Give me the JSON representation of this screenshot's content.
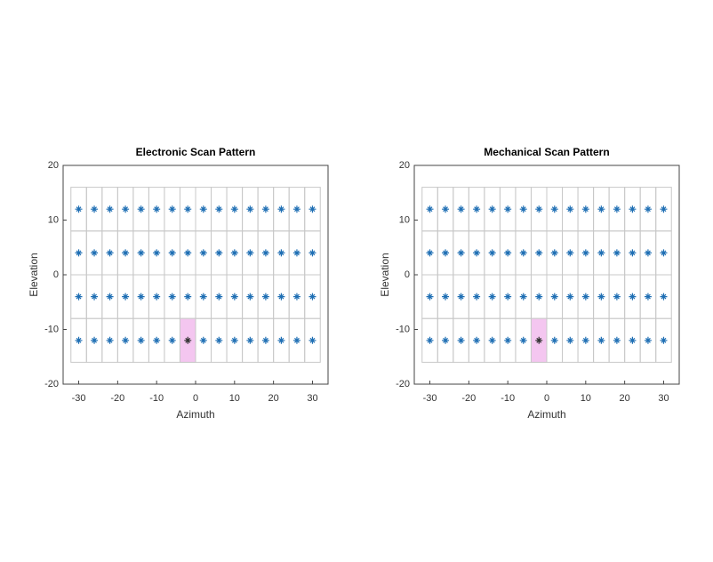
{
  "chart_data": [
    {
      "type": "scatter",
      "title": "Electronic Scan Pattern",
      "x_label": "Azimuth",
      "y_label": "Elevation",
      "x": [
        -30,
        -26,
        -22,
        -18,
        -14,
        -10,
        -6,
        -2,
        2,
        6,
        10,
        14,
        18,
        22,
        26,
        30,
        -30,
        -26,
        -22,
        -18,
        -14,
        -10,
        -6,
        -2,
        2,
        6,
        10,
        14,
        18,
        22,
        26,
        30,
        -30,
        -26,
        -22,
        -18,
        -14,
        -10,
        -6,
        -2,
        2,
        6,
        10,
        14,
        18,
        22,
        26,
        30,
        -30,
        -26,
        -22,
        -18,
        -14,
        -10,
        -6,
        -2,
        2,
        6,
        10,
        14,
        18,
        22,
        26,
        30
      ],
      "y": [
        12,
        12,
        12,
        12,
        12,
        12,
        12,
        12,
        12,
        12,
        12,
        12,
        12,
        12,
        12,
        12,
        4,
        4,
        4,
        4,
        4,
        4,
        4,
        4,
        4,
        4,
        4,
        4,
        4,
        4,
        4,
        4,
        -4,
        -4,
        -4,
        -4,
        -4,
        -4,
        -4,
        -4,
        -4,
        -4,
        -4,
        -4,
        -4,
        -4,
        -4,
        -4,
        -12,
        -12,
        -12,
        -12,
        -12,
        -12,
        -12,
        -12,
        -12,
        -12,
        -12,
        -12,
        -12,
        -12,
        -12,
        -12
      ],
      "cell_width": 4,
      "cell_height": 8,
      "highlight": {
        "azimuth": -2,
        "elevation": -12,
        "color": "#f4c6f0"
      },
      "color": "#1f6fb4",
      "xlim": [
        -34,
        34
      ],
      "ylim": [
        -20,
        20
      ],
      "xticks": [
        -30,
        -20,
        -10,
        0,
        10,
        20,
        30
      ],
      "yticks": [
        -20,
        -10,
        0,
        10,
        20
      ]
    },
    {
      "type": "scatter",
      "title": "Mechanical Scan Pattern",
      "x_label": "Azimuth",
      "y_label": "Elevation",
      "x": [
        -30,
        -26,
        -22,
        -18,
        -14,
        -10,
        -6,
        -2,
        2,
        6,
        10,
        14,
        18,
        22,
        26,
        30,
        -30,
        -26,
        -22,
        -18,
        -14,
        -10,
        -6,
        -2,
        2,
        6,
        10,
        14,
        18,
        22,
        26,
        30,
        -30,
        -26,
        -22,
        -18,
        -14,
        -10,
        -6,
        -2,
        2,
        6,
        10,
        14,
        18,
        22,
        26,
        30,
        -30,
        -26,
        -22,
        -18,
        -14,
        -10,
        -6,
        -2,
        2,
        6,
        10,
        14,
        18,
        22,
        26,
        30
      ],
      "y": [
        12,
        12,
        12,
        12,
        12,
        12,
        12,
        12,
        12,
        12,
        12,
        12,
        12,
        12,
        12,
        12,
        4,
        4,
        4,
        4,
        4,
        4,
        4,
        4,
        4,
        4,
        4,
        4,
        4,
        4,
        4,
        4,
        -4,
        -4,
        -4,
        -4,
        -4,
        -4,
        -4,
        -4,
        -4,
        -4,
        -4,
        -4,
        -4,
        -4,
        -4,
        -4,
        -12,
        -12,
        -12,
        -12,
        -12,
        -12,
        -12,
        -12,
        -12,
        -12,
        -12,
        -12,
        -12,
        -12,
        -12,
        -12
      ],
      "cell_width": 4,
      "cell_height": 8,
      "highlight": {
        "azimuth": -2,
        "elevation": -12,
        "color": "#f4c6f0"
      },
      "color": "#1f6fb4",
      "xlim": [
        -34,
        34
      ],
      "ylim": [
        -20,
        20
      ],
      "xticks": [
        -30,
        -20,
        -10,
        0,
        10,
        20,
        30
      ],
      "yticks": [
        -20,
        -10,
        0,
        10,
        20
      ]
    }
  ]
}
